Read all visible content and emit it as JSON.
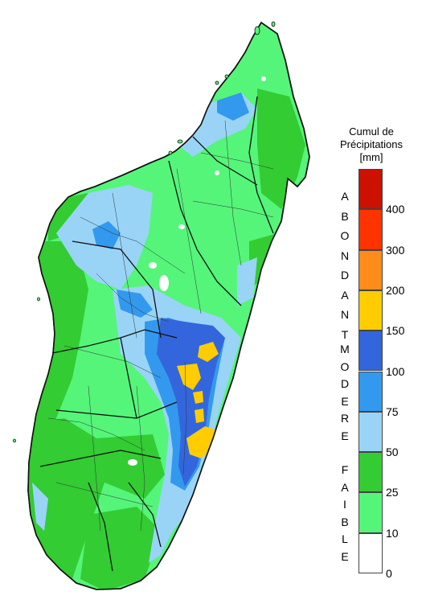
{
  "legend": {
    "title_line1": "Cumul de",
    "title_line2": "Précipitations",
    "title_line3": "[mm]",
    "bins": [
      {
        "lower": "0",
        "color": "#ffffff"
      },
      {
        "lower": "10",
        "color": "#55f57a"
      },
      {
        "lower": "25",
        "color": "#33cc33"
      },
      {
        "lower": "50",
        "color": "#99d4f7"
      },
      {
        "lower": "75",
        "color": "#3399ee"
      },
      {
        "lower": "100",
        "color": "#3366dd"
      },
      {
        "lower": "150",
        "color": "#ffcc00"
      },
      {
        "lower": "200",
        "color": "#ff8c1a"
      },
      {
        "lower": "300",
        "color": "#ff3300"
      },
      {
        "lower": "400",
        "color": "#cc1100"
      }
    ],
    "categories": [
      {
        "word": "ABONDANT",
        "letters": [
          "A",
          "B",
          "O",
          "N",
          "D",
          "A",
          "N",
          "T"
        ]
      },
      {
        "word": "MODERE",
        "letters": [
          "M",
          "O",
          "D",
          "E",
          "R",
          "E"
        ]
      },
      {
        "word": "FAIBLE",
        "letters": [
          "F",
          "A",
          "I",
          "B",
          "L",
          "E"
        ]
      }
    ]
  },
  "map": {
    "colors": {
      "faible_light": "#55f57a",
      "faible_dark": "#33cc33",
      "modere_light": "#99d4f7",
      "modere_mid": "#3399ee",
      "modere_dark": "#3366dd",
      "abondant": "#ffcc00",
      "border": "#111111"
    }
  }
}
